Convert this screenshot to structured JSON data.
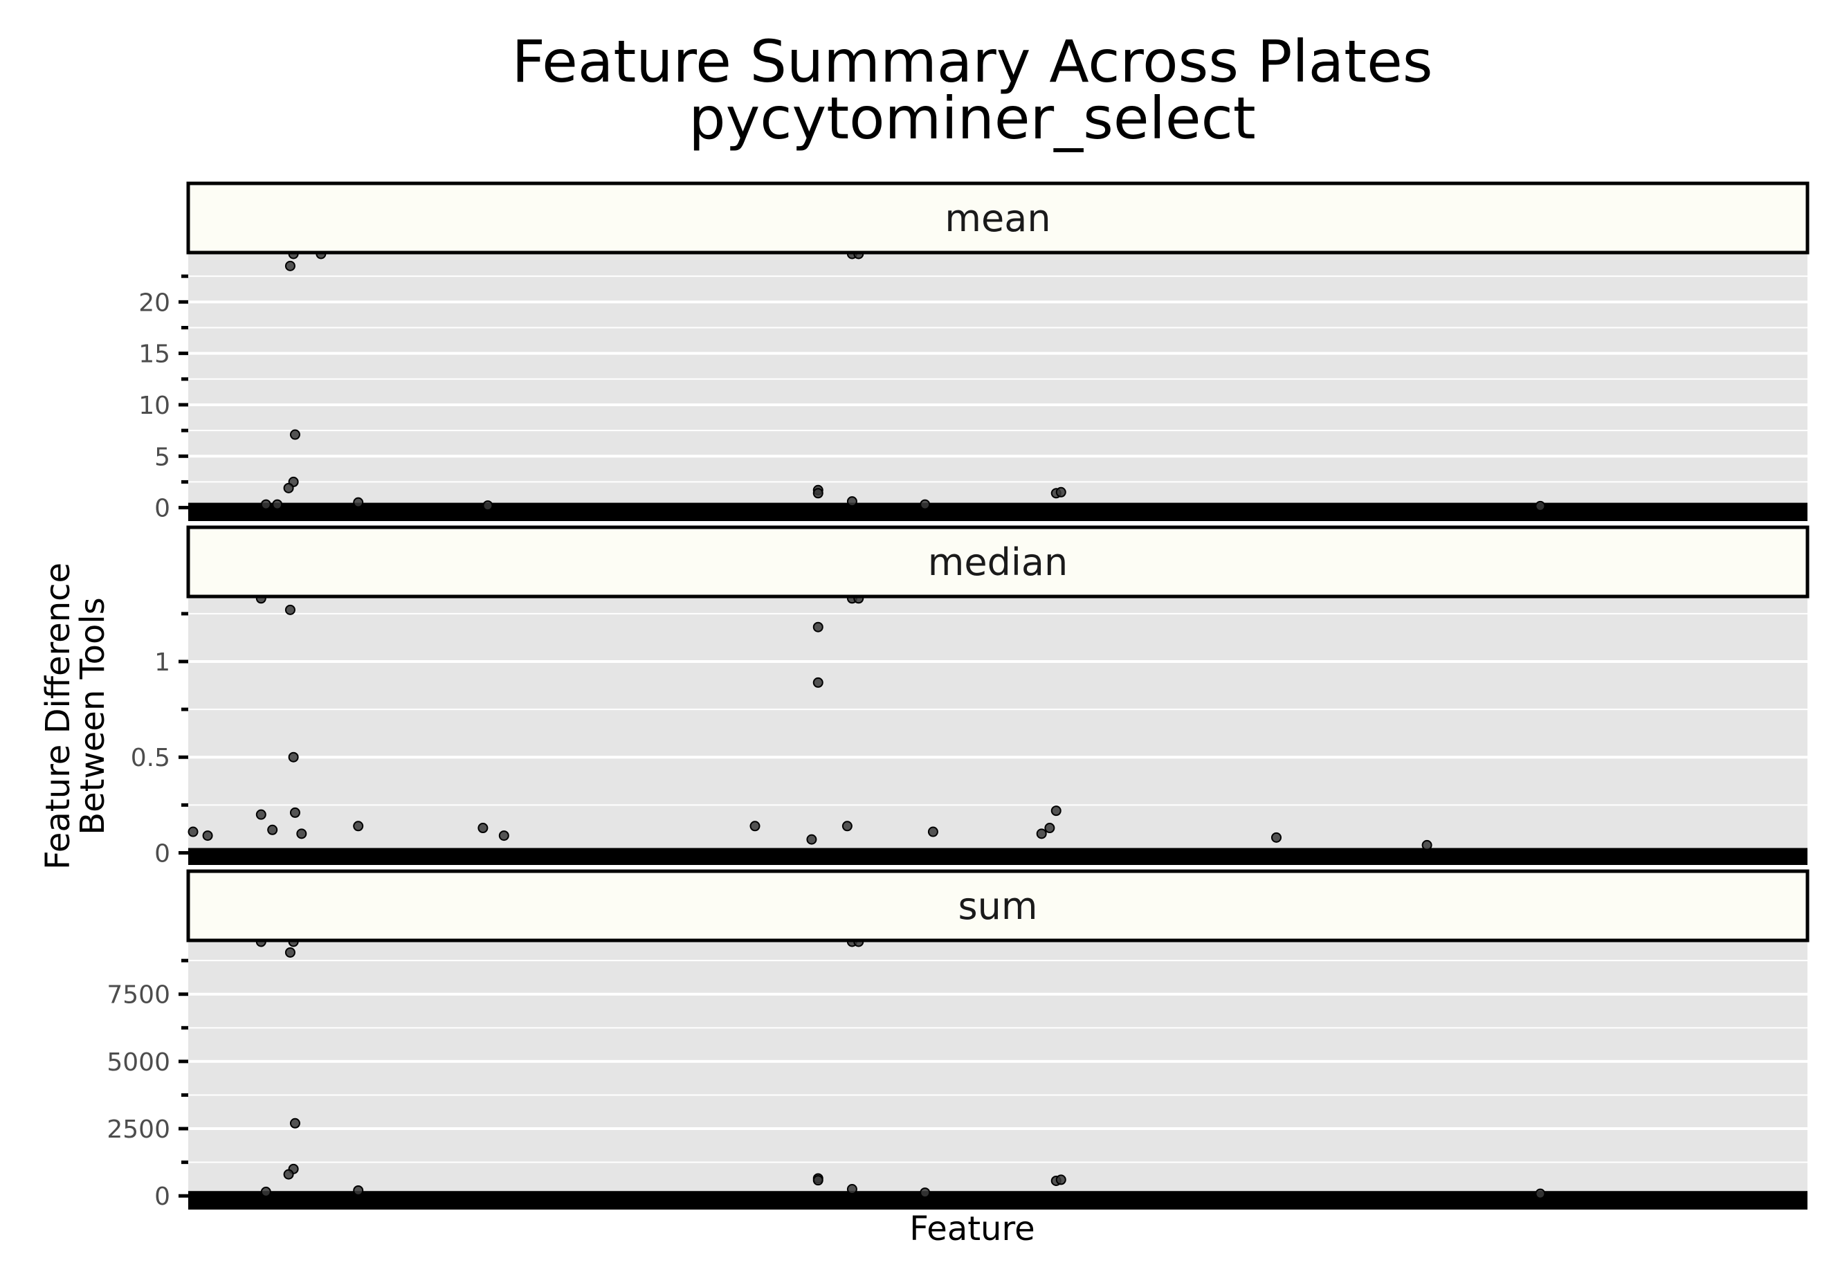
{
  "chart_data": {
    "type": "scatter",
    "title": "Feature Summary Across Plates",
    "subtitle": "pycytominer_select",
    "xlabel": "Feature",
    "ylabel": "Feature Difference\nBetween Tools",
    "grid": true,
    "panels": [
      {
        "name": "mean",
        "ylim": [
          -0.5,
          24.8
        ],
        "yticks": [
          0,
          5,
          10,
          15,
          20
        ],
        "ytick_labels": [
          "0",
          "5",
          "10",
          "15",
          "20"
        ],
        "points": [
          [
            0.065,
            24.7
          ],
          [
            0.082,
            24.7
          ],
          [
            0.063,
            23.5
          ],
          [
            0.066,
            7.1
          ],
          [
            0.065,
            2.5
          ],
          [
            0.062,
            1.9
          ],
          [
            0.389,
            1.7
          ],
          [
            0.389,
            1.4
          ],
          [
            0.536,
            1.4
          ],
          [
            0.539,
            1.5
          ],
          [
            0.41,
            0.6
          ],
          [
            0.105,
            0.5
          ],
          [
            0.455,
            0.3
          ],
          [
            0.048,
            0.3
          ],
          [
            0.055,
            0.3
          ],
          [
            0.185,
            0.2
          ],
          [
            0.835,
            0.15
          ],
          [
            0.41,
            24.7
          ],
          [
            0.414,
            24.7
          ]
        ]
      },
      {
        "name": "median",
        "ylim": [
          -0.02,
          1.34
        ],
        "yticks": [
          0,
          0.5,
          1
        ],
        "ytick_labels": [
          "0",
          "0.5",
          "1"
        ],
        "points": [
          [
            0.045,
            1.33
          ],
          [
            0.063,
            1.27
          ],
          [
            0.389,
            1.18
          ],
          [
            0.389,
            0.89
          ],
          [
            0.065,
            0.5
          ],
          [
            0.045,
            0.2
          ],
          [
            0.066,
            0.21
          ],
          [
            0.536,
            0.22
          ],
          [
            0.105,
            0.14
          ],
          [
            0.182,
            0.13
          ],
          [
            0.35,
            0.14
          ],
          [
            0.407,
            0.14
          ],
          [
            0.385,
            0.07
          ],
          [
            0.052,
            0.12
          ],
          [
            0.07,
            0.1
          ],
          [
            0.003,
            0.11
          ],
          [
            0.012,
            0.09
          ],
          [
            0.527,
            0.1
          ],
          [
            0.532,
            0.13
          ],
          [
            0.46,
            0.11
          ],
          [
            0.672,
            0.08
          ],
          [
            0.195,
            0.09
          ],
          [
            0.765,
            0.04
          ],
          [
            0.41,
            1.33
          ],
          [
            0.414,
            1.33
          ]
        ]
      },
      {
        "name": "sum",
        "ylim": [
          -200,
          9500
        ],
        "yticks": [
          0,
          2500,
          5000,
          7500
        ],
        "ytick_labels": [
          "0",
          "2500",
          "5000",
          "7500"
        ],
        "points": [
          [
            0.045,
            9480
          ],
          [
            0.065,
            9480
          ],
          [
            0.063,
            9050
          ],
          [
            0.066,
            2700
          ],
          [
            0.065,
            1000
          ],
          [
            0.062,
            800
          ],
          [
            0.389,
            650
          ],
          [
            0.389,
            580
          ],
          [
            0.536,
            560
          ],
          [
            0.539,
            600
          ],
          [
            0.41,
            250
          ],
          [
            0.105,
            200
          ],
          [
            0.455,
            120
          ],
          [
            0.048,
            150
          ],
          [
            0.835,
            80
          ],
          [
            0.41,
            9480
          ],
          [
            0.414,
            9480
          ]
        ]
      }
    ]
  }
}
